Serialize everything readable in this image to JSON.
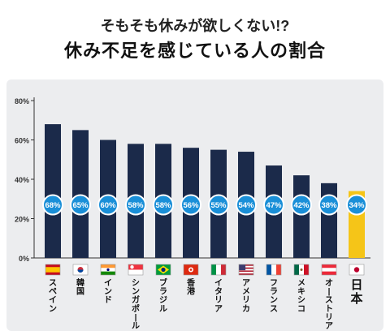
{
  "header": {
    "line1": "そもそも休みが欲しくない!?",
    "line2": "休み不足を感じている人の割合"
  },
  "colors": {
    "bar": "#1b2a4a",
    "highlight_bar": "#f5c518",
    "badge_fill": "#1a8fd8",
    "badge_stroke": "#ffffff",
    "panel": "#ecedef"
  },
  "chart_data": {
    "type": "bar",
    "categories": [
      "スペイン",
      "韓国",
      "インド",
      "シンガポール",
      "ブラジル",
      "香港",
      "イタリア",
      "アメリカ",
      "フランス",
      "メキシコ",
      "オーストリア",
      "日本"
    ],
    "values": [
      68,
      65,
      60,
      58,
      58,
      56,
      55,
      54,
      47,
      42,
      38,
      34
    ],
    "value_labels": [
      "68%",
      "65%",
      "60%",
      "58%",
      "58%",
      "56%",
      "55%",
      "54%",
      "47%",
      "42%",
      "38%",
      "34%"
    ],
    "highlight": "日本",
    "ylim": [
      0,
      80
    ],
    "yticks": [
      0,
      20,
      40,
      60,
      80
    ],
    "ytick_labels": [
      "0%",
      "20%",
      "40%",
      "60%",
      "80%"
    ],
    "flags": [
      "flag-spain",
      "flag-korea",
      "flag-india",
      "flag-singapore",
      "flag-brazil",
      "flag-hongkong",
      "flag-italy",
      "flag-usa",
      "flag-france",
      "flag-mexico",
      "flag-austria",
      "flag-japan"
    ],
    "grid": false
  }
}
